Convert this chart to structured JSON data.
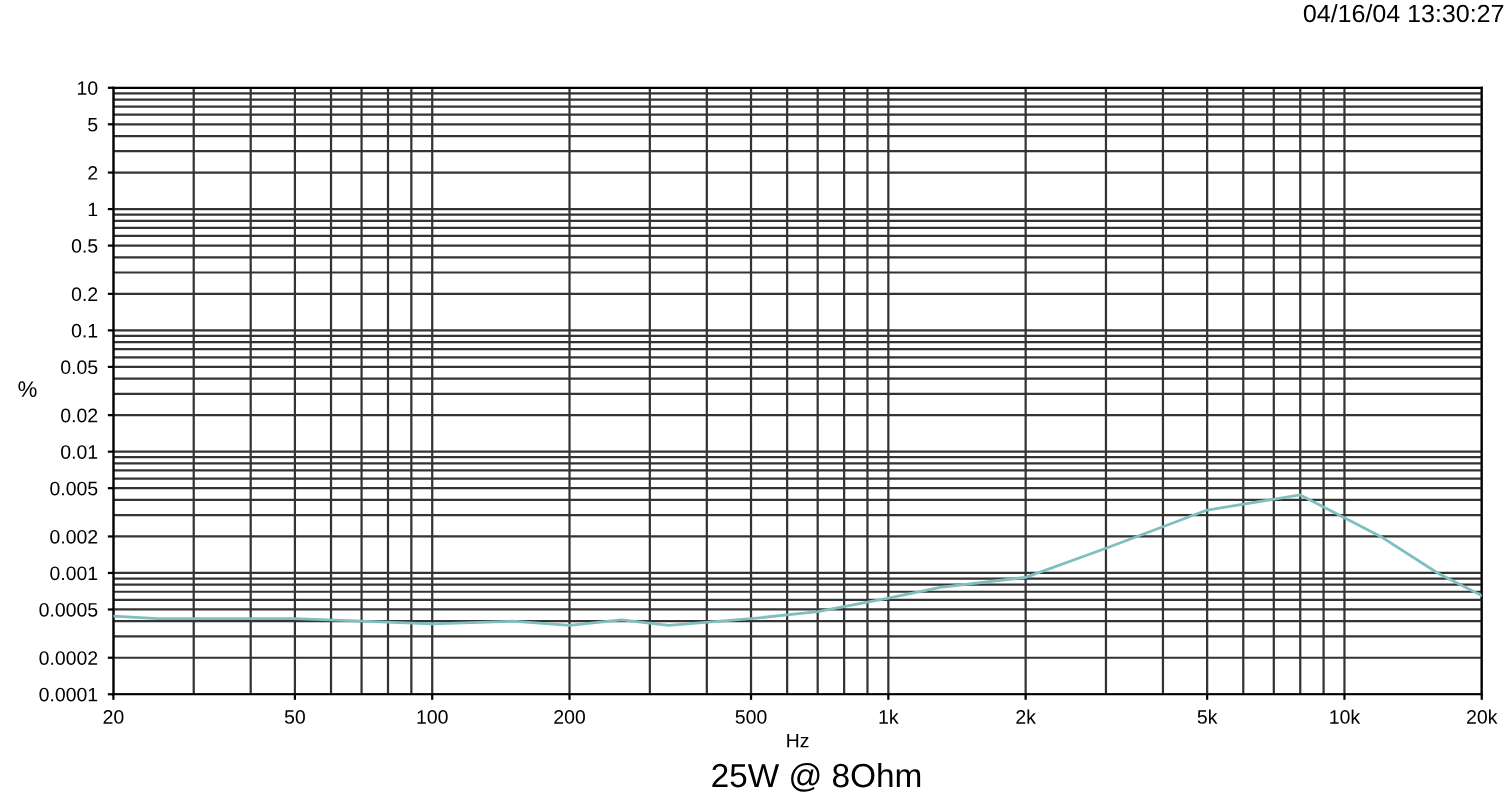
{
  "chart_data": {
    "type": "line",
    "title": "25W @ 8Ohm",
    "xlabel": "Hz",
    "ylabel": "%",
    "annotations": [
      "04/16/04 13:30:27"
    ],
    "log": "xy",
    "grid": true,
    "legend": false,
    "marker": "none",
    "line_style": "solid",
    "xlim": [
      20,
      20000
    ],
    "ylim": [
      0.0001,
      10
    ],
    "xticks": [
      20,
      50,
      100,
      200,
      500,
      {
        "value": 1000,
        "label": "1k"
      },
      {
        "value": 2000,
        "label": "2k"
      },
      {
        "value": 5000,
        "label": "5k"
      },
      {
        "value": 10000,
        "label": "10k"
      },
      {
        "value": 20000,
        "label": "20k"
      }
    ],
    "yticks": [
      0.0001,
      0.0002,
      0.0005,
      0.001,
      0.002,
      0.005,
      0.01,
      0.02,
      0.05,
      0.1,
      0.2,
      0.5,
      1,
      2,
      5,
      10
    ],
    "x": [
      20,
      25,
      50,
      70,
      100,
      150,
      200,
      260,
      330,
      500,
      700,
      1000,
      1300,
      2000,
      3000,
      5000,
      8000,
      12000,
      16000,
      20000
    ],
    "series": [
      {
        "color": "#7fbfbf",
        "values": [
          0.00044,
          0.00042,
          0.00042,
          0.0004,
          0.00038,
          0.0004,
          0.00037,
          0.00041,
          0.00037,
          0.00042,
          0.00048,
          0.00062,
          0.00076,
          0.00092,
          0.0016,
          0.0033,
          0.0044,
          0.002,
          0.001,
          0.00065
        ]
      }
    ]
  }
}
